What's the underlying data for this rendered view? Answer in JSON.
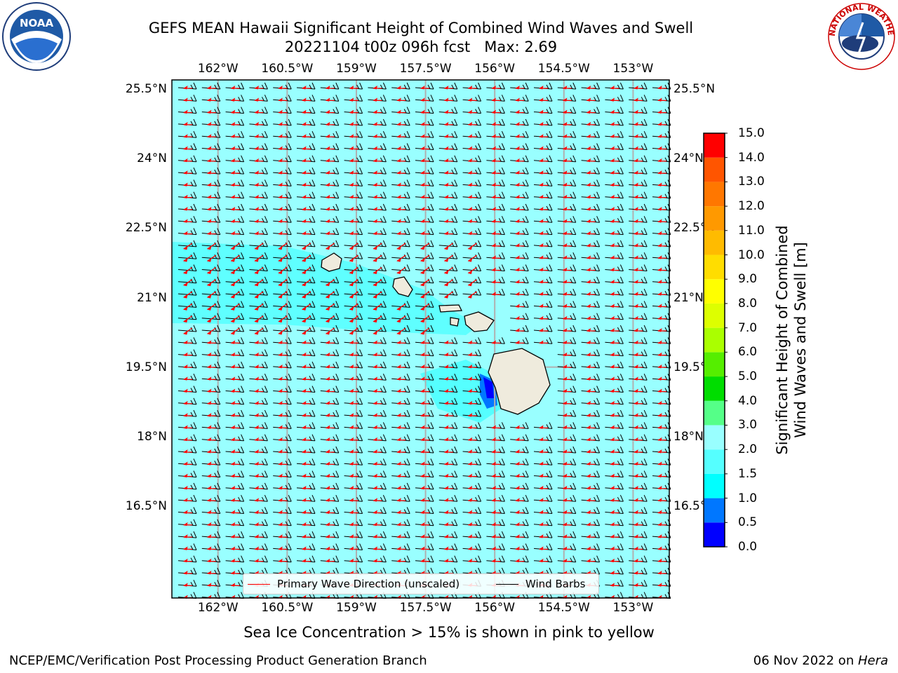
{
  "title": {
    "line1": "GEFS MEAN Hawaii Significant Height of Combined Wind Waves and Swell",
    "line2": "20221104 t00z 096h fcst   Max: 2.69"
  },
  "map": {
    "lon_ticks": [
      "162°W",
      "160.5°W",
      "159°W",
      "157.5°W",
      "156°W",
      "154.5°W",
      "153°W"
    ],
    "lat_ticks": [
      "25.5°N",
      "24°N",
      "22.5°N",
      "21°N",
      "19.5°N",
      "18°N",
      "16.5°N"
    ],
    "lon_values": [
      -162,
      -160.5,
      -159,
      -157.5,
      -156,
      -154.5,
      -153
    ],
    "lat_values": [
      25.5,
      24,
      22.5,
      21,
      19.5,
      18,
      16.5
    ],
    "lon_range": [
      -163,
      -152.2
    ],
    "lat_range": [
      14.5,
      25.7
    ],
    "ocean_color": "#99ffff",
    "land_color": "#efebdd",
    "legend": {
      "wave_dir": "Primary Wave Direction (unscaled)",
      "wind_barbs": "Wind Barbs",
      "wave_dir_color": "#ff0000",
      "wind_barbs_color": "#000000"
    }
  },
  "colorbar": {
    "label": "Significant Height of Combined\nWind Waves and Swell [m]",
    "ticks": [
      "0.0",
      "0.5",
      "1.0",
      "1.5",
      "2.0",
      "3.0",
      "4.0",
      "5.0",
      "6.0",
      "7.0",
      "8.0",
      "9.0",
      "10.0",
      "11.0",
      "12.0",
      "13.0",
      "14.0",
      "15.0"
    ],
    "colors": [
      "#0000ff",
      "#0077ff",
      "#00ffff",
      "#55ffff",
      "#99ffff",
      "#55ff88",
      "#00dd00",
      "#55ee00",
      "#aaff00",
      "#ddff00",
      "#ffff00",
      "#ffdd00",
      "#ffbb00",
      "#ff9900",
      "#ff7700",
      "#ff5500",
      "#ff0000"
    ]
  },
  "notes": {
    "sea_ice": "Sea Ice Concentration > 15% is shown in pink to yellow",
    "credit": "NCEP/EMC/Verification Post Processing Product Generation Branch",
    "date": "06 Nov 2022 on ",
    "machine": "Hera"
  },
  "logos": {
    "noaa_text": "NOAA",
    "nws_text": "NATIONAL WEATHER SERVICE"
  },
  "chart_data": {
    "type": "heatmap",
    "title": "GEFS MEAN Hawaii Significant Height of Combined Wind Waves and Swell",
    "subtitle": "20221104 t00z 096h fcst   Max: 2.69",
    "max_value": 2.69,
    "units": "m",
    "xlabel": "",
    "ylabel": "",
    "xlim": [
      -163,
      -152.2
    ],
    "ylim": [
      14.5,
      25.7
    ],
    "colorbar_levels": [
      0.0,
      0.5,
      1.0,
      1.5,
      2.0,
      3.0,
      4.0,
      5.0,
      6.0,
      7.0,
      8.0,
      9.0,
      10.0,
      11.0,
      12.0,
      13.0,
      14.0,
      15.0
    ],
    "dominant_range": [
      2.0,
      3.0
    ],
    "series": [
      {
        "name": "Primary Wave Direction (unscaled)",
        "color": "#ff0000"
      },
      {
        "name": "Wind Barbs",
        "color": "#000000"
      }
    ],
    "grid": true,
    "legend": "bottom-center"
  }
}
